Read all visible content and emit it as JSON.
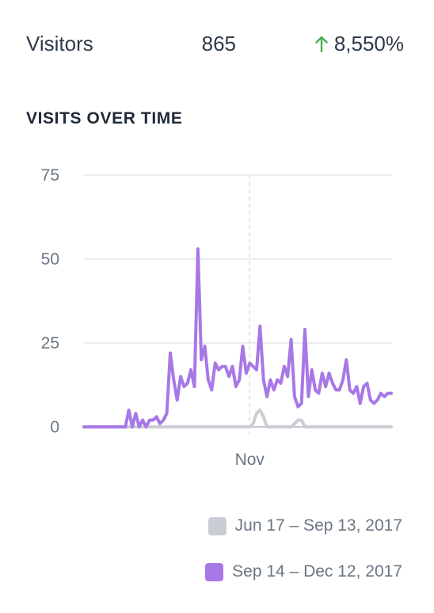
{
  "stat": {
    "label": "Visitors",
    "value": "865",
    "change": "8,550%",
    "change_icon": "arrow-up-icon",
    "change_color": "#4caf50"
  },
  "section_title": "VISITS OVER TIME",
  "legend": {
    "previous": "Jun 17 – Sep 13, 2017",
    "current": "Sep 14 – Dec 12, 2017"
  },
  "colors": {
    "previous": "#c9ced4",
    "current": "#a878e6",
    "grid": "#e3e6ea",
    "axis": "#c3c8ce"
  },
  "chart_data": {
    "type": "line",
    "title": "VISITS OVER TIME",
    "xlabel": "",
    "ylabel": "",
    "ylim": [
      0,
      75
    ],
    "yticks": [
      0,
      25,
      50,
      75
    ],
    "xticks": [
      {
        "label": "Nov",
        "day": 48
      }
    ],
    "grid": true,
    "legend_position": "bottom-right",
    "series": [
      {
        "name": "Jun 17 – Sep 13, 2017",
        "key": "previous",
        "values": [
          0,
          0,
          0,
          0,
          0,
          0,
          0,
          0,
          0,
          0,
          0,
          0,
          0,
          0,
          0,
          0,
          0,
          0,
          0,
          0,
          0,
          0,
          0,
          0,
          0,
          0,
          0,
          0,
          0,
          0,
          0,
          0,
          0,
          0,
          0,
          0,
          0,
          0,
          0,
          0,
          0,
          0,
          0,
          0,
          0,
          0,
          0,
          0,
          0,
          1,
          4,
          5,
          3,
          0,
          0,
          0,
          0,
          0,
          0,
          0,
          0,
          1,
          2,
          2,
          0,
          0,
          0,
          0,
          0,
          0,
          0,
          0,
          0,
          0,
          0,
          0,
          0,
          0,
          0,
          0,
          0,
          0,
          0,
          0,
          0,
          0,
          0,
          0,
          0,
          0
        ]
      },
      {
        "name": "Sep 14 – Dec 12, 2017",
        "key": "current",
        "values": [
          0,
          0,
          0,
          0,
          0,
          0,
          0,
          0,
          0,
          0,
          0,
          0,
          0,
          5,
          0,
          4,
          0,
          2,
          0,
          2,
          2,
          3,
          1,
          2,
          4,
          22,
          14,
          8,
          15,
          12,
          13,
          17,
          12,
          53,
          20,
          24,
          14,
          11,
          19,
          17,
          18,
          18,
          15,
          18,
          12,
          14,
          24,
          16,
          19,
          18,
          17,
          30,
          14,
          9,
          14,
          11,
          14,
          13,
          18,
          15,
          26,
          9,
          6,
          7,
          29,
          9,
          17,
          11,
          10,
          16,
          12,
          16,
          13,
          11,
          11,
          14,
          20,
          11,
          10,
          12,
          7,
          12,
          13,
          8,
          7,
          8,
          10,
          9,
          10,
          10
        ]
      }
    ]
  }
}
